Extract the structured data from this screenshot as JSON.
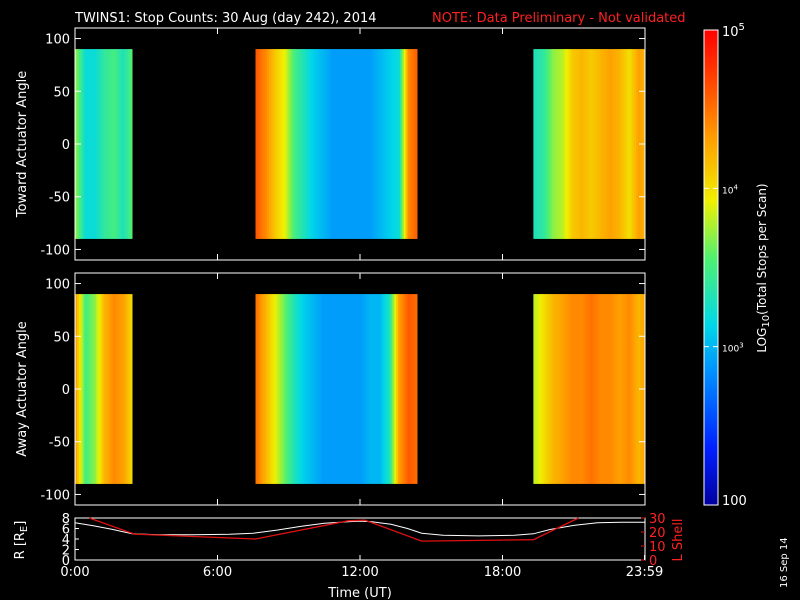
{
  "header": {
    "title": "TWINS1: Stop Counts: 30 Aug (day 242), 2014",
    "note": "NOTE: Data Preliminary - Not validated"
  },
  "footer": {
    "date_stamp": "16 Sep 14"
  },
  "colors": {
    "background": "#000000",
    "axis": "#ffffff",
    "note": "#ff2020",
    "r_line": "#ffffff",
    "lshell_line": "#e01010"
  },
  "chart_data": [
    {
      "type": "heatmap",
      "panel": "toward",
      "ylabel": "Toward Actuator Angle",
      "ylim": [
        -110,
        110
      ],
      "yticks": [
        "100",
        "50",
        "0",
        "-50",
        "-100"
      ],
      "ytick_values": [
        100,
        50,
        0,
        -50,
        -100
      ],
      "xlim": [
        0,
        24
      ],
      "data_angle_range": [
        -90,
        90
      ],
      "gaps_no_data_hours": [
        [
          2.5,
          7.6
        ],
        [
          14.6,
          19.3
        ]
      ],
      "intensity_profile": [
        [
          0.0,
          3.7
        ],
        [
          0.4,
          3.2
        ],
        [
          0.8,
          3.2
        ],
        [
          1.2,
          3.4
        ],
        [
          1.6,
          3.5
        ],
        [
          2.0,
          3.3
        ],
        [
          2.4,
          3.6
        ],
        [
          7.6,
          4.6
        ],
        [
          8.0,
          4.4
        ],
        [
          8.4,
          4.1
        ],
        [
          8.8,
          3.9
        ],
        [
          9.2,
          3.5
        ],
        [
          9.6,
          3.3
        ],
        [
          10.0,
          3.1
        ],
        [
          10.4,
          3.0
        ],
        [
          10.8,
          2.9
        ],
        [
          11.2,
          2.9
        ],
        [
          11.6,
          2.9
        ],
        [
          12.0,
          2.9
        ],
        [
          12.4,
          2.9
        ],
        [
          12.8,
          3.0
        ],
        [
          13.2,
          3.1
        ],
        [
          13.6,
          3.2
        ],
        [
          14.0,
          4.4
        ],
        [
          14.4,
          4.6
        ],
        [
          19.3,
          3.3
        ],
        [
          19.7,
          3.4
        ],
        [
          20.1,
          3.7
        ],
        [
          20.5,
          3.8
        ],
        [
          20.9,
          4.1
        ],
        [
          21.3,
          4.2
        ],
        [
          21.7,
          4.1
        ],
        [
          22.1,
          4.2
        ],
        [
          22.5,
          4.3
        ],
        [
          22.9,
          4.2
        ],
        [
          23.3,
          4.0
        ],
        [
          23.7,
          4.3
        ],
        [
          23.98,
          4.2
        ]
      ]
    },
    {
      "type": "heatmap",
      "panel": "away",
      "ylabel": "Away Actuator Angle",
      "ylim": [
        -110,
        110
      ],
      "yticks": [
        "100",
        "50",
        "0",
        "-50",
        "-100"
      ],
      "ytick_values": [
        100,
        50,
        0,
        -50,
        -100
      ],
      "xlim": [
        0,
        24
      ],
      "data_angle_range": [
        -90,
        90
      ],
      "gaps_no_data_hours": [
        [
          2.5,
          7.6
        ],
        [
          14.6,
          19.3
        ]
      ],
      "intensity_profile": [
        [
          0.0,
          4.3
        ],
        [
          0.4,
          3.5
        ],
        [
          0.8,
          3.7
        ],
        [
          1.2,
          4.2
        ],
        [
          1.6,
          4.4
        ],
        [
          2.0,
          4.3
        ],
        [
          2.4,
          4.0
        ],
        [
          7.6,
          4.5
        ],
        [
          8.0,
          4.2
        ],
        [
          8.4,
          3.9
        ],
        [
          8.8,
          3.6
        ],
        [
          9.2,
          3.3
        ],
        [
          9.6,
          3.1
        ],
        [
          10.0,
          3.0
        ],
        [
          10.4,
          2.9
        ],
        [
          10.8,
          2.9
        ],
        [
          11.2,
          2.9
        ],
        [
          11.6,
          2.9
        ],
        [
          12.0,
          2.9
        ],
        [
          12.4,
          3.0
        ],
        [
          12.8,
          3.0
        ],
        [
          13.2,
          3.3
        ],
        [
          13.6,
          4.3
        ],
        [
          14.0,
          4.6
        ],
        [
          14.4,
          4.5
        ],
        [
          19.3,
          3.8
        ],
        [
          19.7,
          4.0
        ],
        [
          20.1,
          4.2
        ],
        [
          20.5,
          4.3
        ],
        [
          20.9,
          4.4
        ],
        [
          21.3,
          4.4
        ],
        [
          21.7,
          4.5
        ],
        [
          22.1,
          4.4
        ],
        [
          22.5,
          4.4
        ],
        [
          22.9,
          4.3
        ],
        [
          23.3,
          4.4
        ],
        [
          23.7,
          4.2
        ],
        [
          23.98,
          4.3
        ]
      ]
    },
    {
      "type": "line",
      "panel": "orbit",
      "ylabel_left": "R [R",
      "ylabel_left_sub": "E",
      "ylabel_left_end": "]",
      "ylabel_right": "L Shell",
      "ylim_left": [
        0,
        8
      ],
      "yticks_left": [
        "8",
        "6",
        "4",
        "2",
        "0"
      ],
      "yticks_left_values": [
        8,
        6,
        4,
        2,
        0
      ],
      "ylim_right": [
        0,
        30
      ],
      "yticks_right": [
        "30",
        "20",
        "10",
        "0"
      ],
      "yticks_right_values": [
        30,
        20,
        10,
        0
      ],
      "xlim": [
        0,
        24
      ],
      "xlabel": "Time (UT)",
      "xtick_labels": [
        "0:00",
        "6:00",
        "12:00",
        "18:00",
        "23:59"
      ],
      "xtick_values": [
        0,
        6,
        12,
        18,
        23.98
      ],
      "series": [
        {
          "axis": "left",
          "x": [
            0,
            0.8,
            1.6,
            2.4,
            3.5,
            5,
            6.5,
            7.5,
            8.5,
            9.5,
            10.5,
            11.5,
            12,
            12.5,
            13.3,
            14,
            14.6,
            15.5,
            17,
            18.5,
            19.3,
            20,
            21,
            22,
            23,
            23.98
          ],
          "values": [
            7.1,
            6.5,
            5.8,
            5.0,
            4.8,
            4.8,
            4.9,
            5.1,
            5.7,
            6.4,
            7.0,
            7.3,
            7.4,
            7.3,
            6.8,
            6.0,
            5.1,
            4.7,
            4.6,
            4.7,
            5.0,
            5.8,
            6.6,
            7.1,
            7.2,
            7.2
          ]
        },
        {
          "axis": "right",
          "x": [
            0.6,
            2.5,
            7.6,
            11.5,
            12.2,
            14.6,
            19.3,
            21.2
          ],
          "values": [
            30,
            18.5,
            15,
            28,
            28.5,
            13.5,
            14.5,
            30
          ]
        }
      ]
    },
    {
      "type": "colorbar",
      "ylabel": "LOG",
      "ylabel_sub": "10",
      "ylabel_end": "(Total Stops per Scan)",
      "range_log": [
        2,
        5
      ],
      "tick_labels": [
        "10",
        "10",
        "100"
      ],
      "tick_exponents": [
        "5",
        "4",
        "3"
      ],
      "tick_values": [
        5,
        4,
        3
      ],
      "bottom_label": "100",
      "bottom_value": 2
    }
  ]
}
